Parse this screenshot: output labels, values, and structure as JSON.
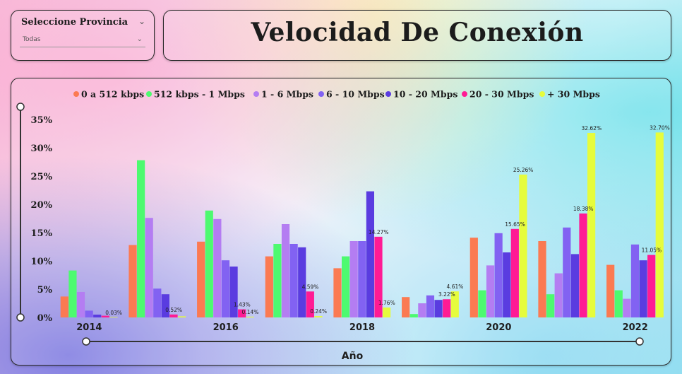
{
  "slicer": {
    "title": "Seleccione Provincia",
    "value": "Todas"
  },
  "header": {
    "title": "Velocidad De Conexión"
  },
  "chart_data": {
    "type": "bar",
    "xlabel": "Año",
    "ylabel": "",
    "ylim": [
      0,
      35
    ],
    "y_ticks": [
      "0%",
      "5%",
      "10%",
      "15%",
      "20%",
      "25%",
      "30%",
      "35%"
    ],
    "grid": false,
    "legend_position": "top",
    "categories": [
      "2014",
      "2015",
      "2016",
      "2017",
      "2018",
      "2019",
      "2020",
      "2021",
      "2022"
    ],
    "x_tick_labels": [
      "2014",
      "",
      "2016",
      "",
      "2018",
      "",
      "2020",
      "",
      "2022"
    ],
    "series": [
      {
        "name": "0 a 512 kbps",
        "color": "#fb7a52",
        "values": [
          3.7,
          12.8,
          13.4,
          10.8,
          8.7,
          3.6,
          14.1,
          13.5,
          9.3
        ]
      },
      {
        "name": "512 kbps - 1 Mbps",
        "color": "#4dfa70",
        "values": [
          8.3,
          27.8,
          18.9,
          13.0,
          10.8,
          0.6,
          4.8,
          4.1,
          4.8
        ]
      },
      {
        "name": "1 - 6 Mbps",
        "color": "#b47df2",
        "values": [
          4.5,
          17.6,
          17.4,
          16.5,
          13.5,
          2.5,
          9.2,
          7.8,
          3.3
        ]
      },
      {
        "name": "6 - 10 Mbps",
        "color": "#8262f2",
        "values": [
          1.2,
          5.1,
          10.1,
          13.0,
          13.5,
          3.9,
          14.9,
          15.9,
          12.9
        ]
      },
      {
        "name": "10 - 20 Mbps",
        "color": "#5a3ce0",
        "values": [
          0.5,
          4.1,
          9.0,
          12.4,
          22.3,
          3.1,
          11.5,
          11.2,
          10.1
        ]
      },
      {
        "name": "20 - 30 Mbps",
        "color": "#ff1b94",
        "values": [
          0.3,
          0.52,
          1.43,
          4.59,
          14.27,
          3.22,
          15.65,
          18.38,
          11.05
        ]
      },
      {
        "name": "+ 30 Mbps",
        "color": "#e6fc3c",
        "values": [
          0.03,
          0.2,
          0.14,
          0.24,
          1.76,
          4.61,
          25.26,
          32.62,
          32.7
        ]
      }
    ],
    "data_labels": [
      {
        "series": 6,
        "category": 0,
        "text": "0.03%"
      },
      {
        "series": 5,
        "category": 1,
        "text": "0.52%"
      },
      {
        "series": 5,
        "category": 2,
        "text": "1.43%"
      },
      {
        "series": 6,
        "category": 2,
        "text": "0.14%"
      },
      {
        "series": 5,
        "category": 3,
        "text": "4.59%"
      },
      {
        "series": 6,
        "category": 3,
        "text": "0.24%"
      },
      {
        "series": 5,
        "category": 4,
        "text": "14.27%"
      },
      {
        "series": 6,
        "category": 4,
        "text": "1.76%"
      },
      {
        "series": 5,
        "category": 5,
        "text": "3.22%"
      },
      {
        "series": 6,
        "category": 5,
        "text": "4.61%"
      },
      {
        "series": 5,
        "category": 6,
        "text": "15.65%"
      },
      {
        "series": 6,
        "category": 6,
        "text": "25.26%"
      },
      {
        "series": 5,
        "category": 7,
        "text": "18.38%"
      },
      {
        "series": 6,
        "category": 7,
        "text": "32.62%"
      },
      {
        "series": 5,
        "category": 8,
        "text": "11.05%"
      },
      {
        "series": 6,
        "category": 8,
        "text": "32.70%"
      }
    ]
  }
}
